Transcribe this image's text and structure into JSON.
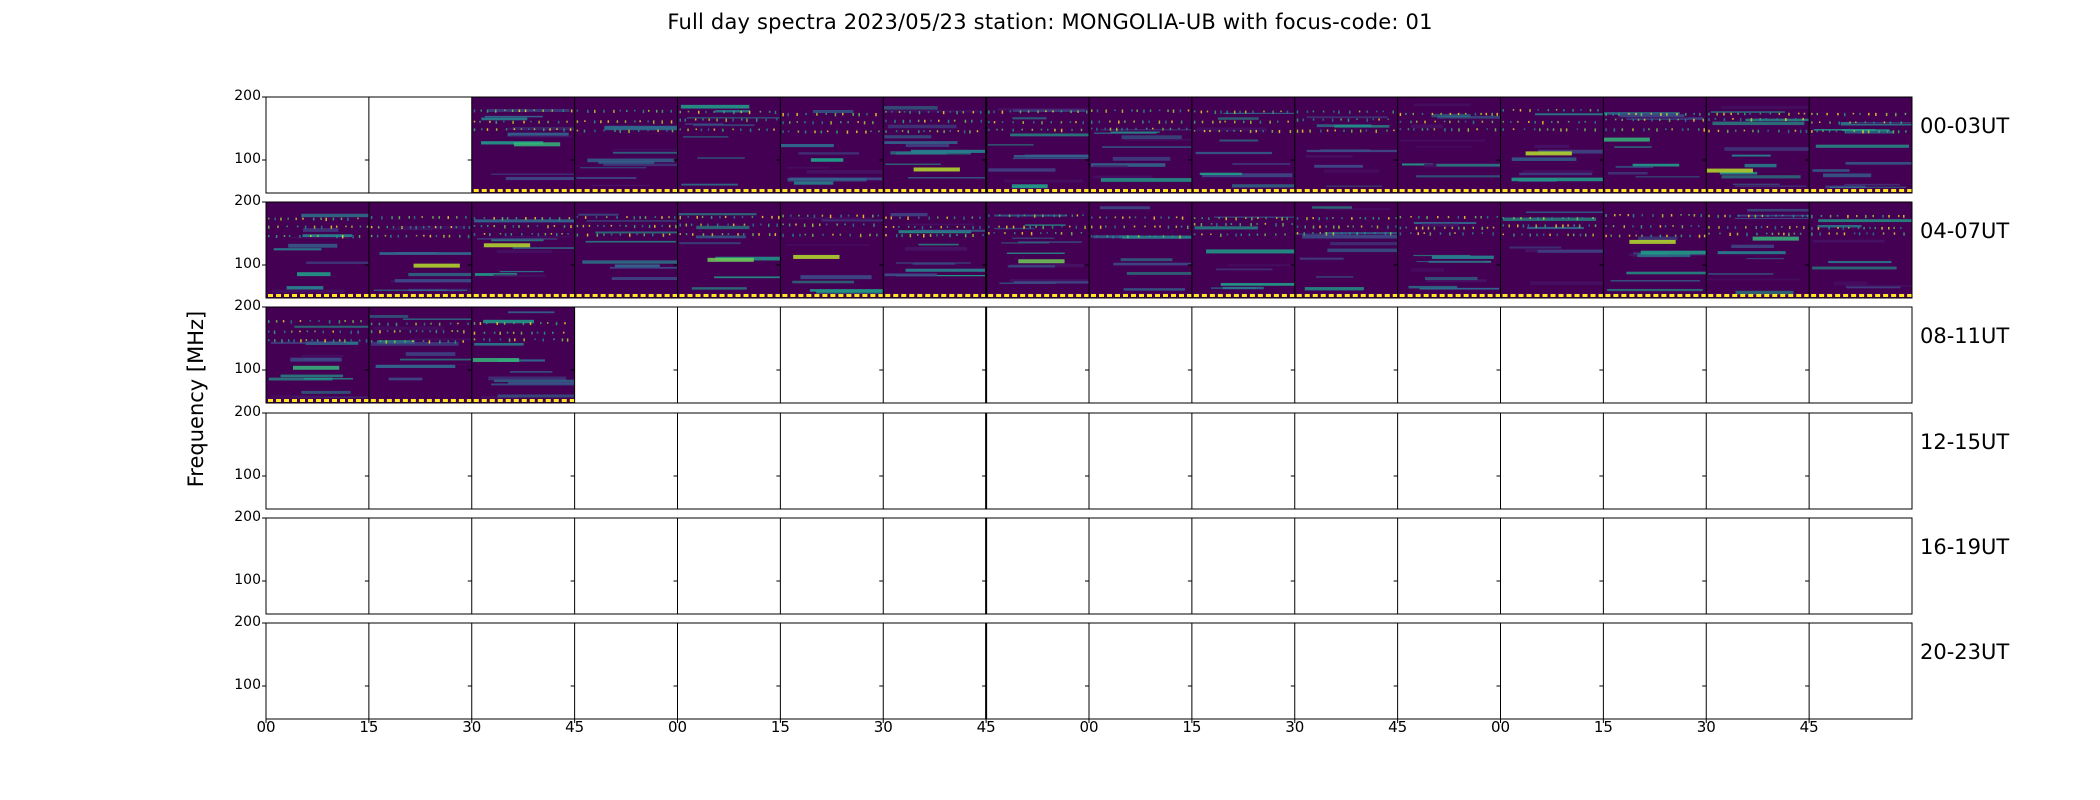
{
  "chart_data": {
    "type": "heatmap",
    "title": "Full day spectra 2023/05/23 station: MONGOLIA-UB with focus-code: 01",
    "ylabel": "Frequency [MHz]",
    "yticks": [
      "200",
      "100"
    ],
    "xticks": [
      "00",
      "15",
      "30",
      "45",
      "00",
      "15",
      "30",
      "45",
      "00",
      "15",
      "30",
      "45",
      "00",
      "15",
      "30",
      "45"
    ],
    "colormap": "viridis",
    "colors": {
      "background": "#440154",
      "mid": "#21918c",
      "high": "#fde725",
      "frame": "#000000"
    },
    "rows": [
      {
        "label": "00-03UT",
        "filled": [
          false,
          false,
          true,
          true,
          true,
          true,
          true,
          true,
          true,
          true,
          true,
          true,
          true,
          true,
          true,
          true
        ]
      },
      {
        "label": "04-07UT",
        "filled": [
          true,
          true,
          true,
          true,
          true,
          true,
          true,
          true,
          true,
          true,
          true,
          true,
          true,
          true,
          true,
          true
        ]
      },
      {
        "label": "08-11UT",
        "filled": [
          true,
          true,
          true,
          false,
          false,
          false,
          false,
          false,
          false,
          false,
          false,
          false,
          false,
          false,
          false,
          false
        ]
      },
      {
        "label": "12-15UT",
        "filled": [
          false,
          false,
          false,
          false,
          false,
          false,
          false,
          false,
          false,
          false,
          false,
          false,
          false,
          false,
          false,
          false
        ]
      },
      {
        "label": "16-19UT",
        "filled": [
          false,
          false,
          false,
          false,
          false,
          false,
          false,
          false,
          false,
          false,
          false,
          false,
          false,
          false,
          false,
          false
        ]
      },
      {
        "label": "20-23UT",
        "filled": [
          false,
          false,
          false,
          false,
          false,
          false,
          false,
          false,
          false,
          false,
          false,
          false,
          false,
          false,
          false,
          false
        ]
      }
    ]
  }
}
